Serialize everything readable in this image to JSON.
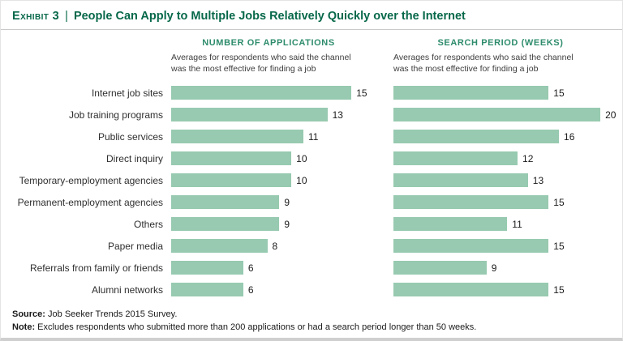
{
  "header": {
    "exhibit_label": "Exhibit 3",
    "separator": "|",
    "title": "People Can Apply to Multiple Jobs Relatively Quickly over the Internet"
  },
  "charts": {
    "left": {
      "title": "NUMBER OF APPLICATIONS",
      "subtitle_lines": [
        "Averages for respondents who said the channel",
        "was the most effective for finding a job"
      ],
      "scale_max": 16.2
    },
    "right": {
      "title": "SEARCH PERIOD (WEEKS)",
      "subtitle_lines": [
        "Averages for respondents who said the channel",
        "was the most effective for finding a job"
      ],
      "scale_max": 20.7
    }
  },
  "chart_data": {
    "type": "bar",
    "orientation": "horizontal",
    "title": "People Can Apply to Multiple Jobs Relatively Quickly over the Internet",
    "categories": [
      "Internet job sites",
      "Job training programs",
      "Public services",
      "Direct inquiry",
      "Temporary-employment agencies",
      "Permanent-employment agencies",
      "Others",
      "Paper media",
      "Referrals from family or friends",
      "Alumni networks"
    ],
    "series": [
      {
        "name": "Number of Applications",
        "values": [
          15,
          13,
          11,
          10,
          10,
          9,
          9,
          8,
          6,
          6
        ]
      },
      {
        "name": "Search Period (Weeks)",
        "values": [
          15,
          20,
          16,
          12,
          13,
          15,
          11,
          15,
          9,
          15
        ]
      }
    ],
    "xlim_left": [
      0,
      16.2
    ],
    "xlim_right": [
      0,
      20.7
    ],
    "grid": false,
    "value_labels": true,
    "legend": "none"
  },
  "footer": {
    "source_label": "Source:",
    "source_text": " Job Seeker Trends 2015 Survey.",
    "note_label": "Note:",
    "note_text": " Excludes respondents who submitted more than 200 applications or had a search period longer than 50 weeks."
  },
  "colors": {
    "bar": "#97cab0",
    "header_green": "#07684a",
    "section_green": "#2e8c6d",
    "rule_gray": "#c9c9c9"
  }
}
